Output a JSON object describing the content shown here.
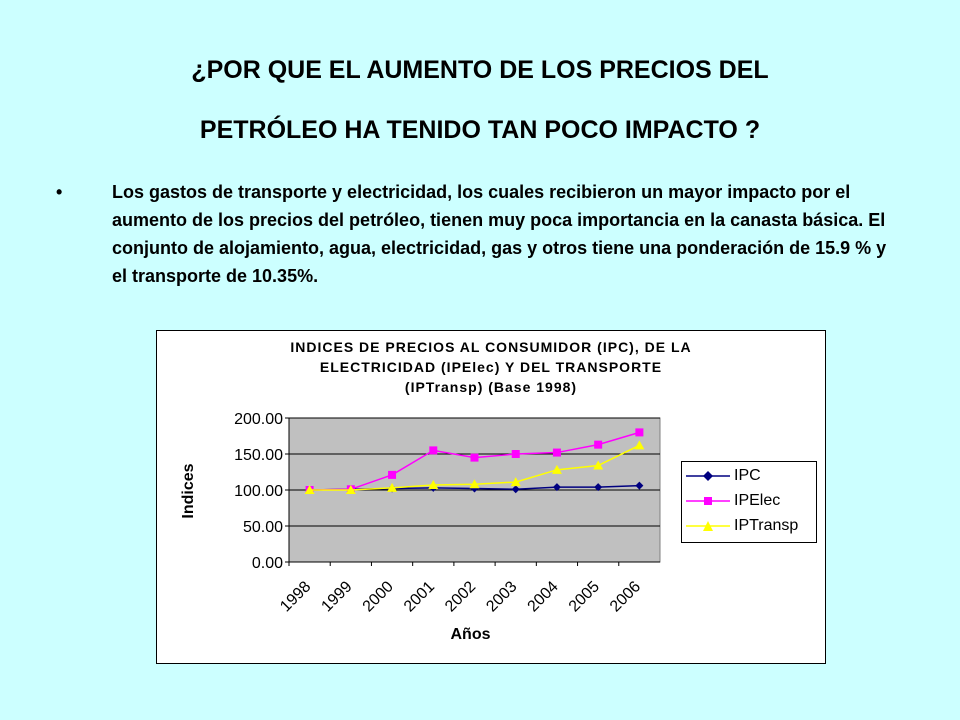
{
  "slide": {
    "title_line1": "¿POR QUE EL AUMENTO DE LOS PRECIOS DEL",
    "title_line2": "PETRÓLEO HA TENIDO TAN POCO IMPACTO ?",
    "bullet": "•",
    "bullet_text": "Los gastos de transporte y electricidad, los cuales recibieron un mayor  impacto por el aumento de los precios del petróleo, tienen muy poca importancia en la canasta básica. El conjunto de alojamiento, agua, electricidad, gas y otros tiene una ponderación de 15.9 % y el transporte de 10.35%."
  },
  "chart_data": {
    "type": "line",
    "title_line1": "INDICES DE PRECIOS AL CONSUMIDOR (IPC), DE LA",
    "title_line2": "ELECTRICIDAD (IPElec) Y DEL TRANSPORTE",
    "title_line3": "(IPTransp) (Base 1998)",
    "xlabel": "Años",
    "ylabel": "Indices",
    "categories": [
      "1998",
      "1999",
      "2000",
      "2001",
      "2002",
      "2003",
      "2004",
      "2005",
      "2006"
    ],
    "ylim": [
      0,
      200
    ],
    "yticks": [
      "0.00",
      "50.00",
      "100.00",
      "150.00",
      "200.00"
    ],
    "grid": true,
    "legend_position": "right",
    "plot_background": "#c0c0c0",
    "series": [
      {
        "name": "IPC",
        "color": "#000080",
        "marker": "diamond",
        "values": [
          100,
          101,
          102,
          103,
          102,
          101,
          104,
          104,
          106
        ]
      },
      {
        "name": "IPElec",
        "color": "#ff00ff",
        "marker": "square",
        "values": [
          100,
          101,
          121,
          155,
          145,
          150,
          152,
          163,
          180
        ]
      },
      {
        "name": "IPTransp",
        "color": "#ffff00",
        "marker": "triangle",
        "values": [
          100,
          100,
          103,
          107,
          108,
          111,
          128,
          134,
          162
        ]
      }
    ]
  }
}
